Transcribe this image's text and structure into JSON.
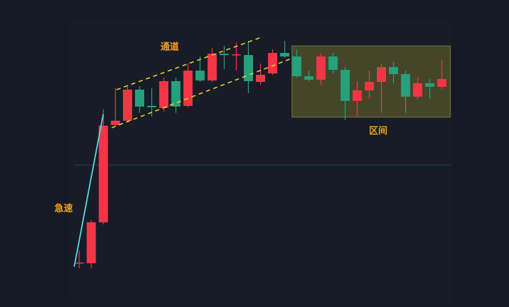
{
  "chart_data": {
    "type": "candlestick",
    "annotations": {
      "channel": "通道",
      "fast": "急速",
      "range": "区间"
    },
    "up_color": "#f23645",
    "down_color": "#26a17b",
    "ylim": [
      0,
      400
    ],
    "candles": [
      {
        "open": 62,
        "high": 80,
        "low": 55,
        "close": 63
      },
      {
        "open": 62,
        "high": 123,
        "low": 55,
        "close": 120
      },
      {
        "open": 120,
        "high": 280,
        "low": 117,
        "close": 257
      },
      {
        "open": 258,
        "high": 310,
        "low": 257,
        "close": 264
      },
      {
        "open": 264,
        "high": 312,
        "low": 263,
        "close": 308
      },
      {
        "open": 308,
        "high": 313,
        "low": 275,
        "close": 284
      },
      {
        "open": 285,
        "high": 310,
        "low": 270,
        "close": 283
      },
      {
        "open": 282,
        "high": 325,
        "low": 277,
        "close": 320
      },
      {
        "open": 320,
        "high": 325,
        "low": 275,
        "close": 284
      },
      {
        "open": 285,
        "high": 345,
        "low": 283,
        "close": 335
      },
      {
        "open": 335,
        "high": 355,
        "low": 319,
        "close": 321
      },
      {
        "open": 321,
        "high": 367,
        "low": 319,
        "close": 359
      },
      {
        "open": 359,
        "high": 370,
        "low": 337,
        "close": 357
      },
      {
        "open": 357,
        "high": 375,
        "low": 335,
        "close": 358
      },
      {
        "open": 357,
        "high": 377,
        "low": 303,
        "close": 320
      },
      {
        "open": 319,
        "high": 345,
        "low": 315,
        "close": 329
      },
      {
        "open": 331,
        "high": 365,
        "low": 329,
        "close": 360
      },
      {
        "open": 360,
        "high": 377,
        "low": 353,
        "close": 355
      },
      {
        "open": 355,
        "high": 365,
        "low": 325,
        "close": 327
      },
      {
        "open": 327,
        "high": 335,
        "low": 320,
        "close": 322
      },
      {
        "open": 322,
        "high": 359,
        "low": 315,
        "close": 355
      },
      {
        "open": 355,
        "high": 360,
        "low": 331,
        "close": 336
      },
      {
        "open": 336,
        "high": 340,
        "low": 265,
        "close": 292
      },
      {
        "open": 292,
        "high": 320,
        "low": 270,
        "close": 307
      },
      {
        "open": 307,
        "high": 335,
        "low": 295,
        "close": 319
      },
      {
        "open": 319,
        "high": 345,
        "low": 275,
        "close": 340
      },
      {
        "open": 340,
        "high": 347,
        "low": 317,
        "close": 330
      },
      {
        "open": 330,
        "high": 335,
        "low": 275,
        "close": 298
      },
      {
        "open": 298,
        "high": 325,
        "low": 295,
        "close": 317
      },
      {
        "open": 317,
        "high": 323,
        "low": 295,
        "close": 312
      },
      {
        "open": 312,
        "high": 350,
        "low": 309,
        "close": 323
      }
    ]
  }
}
